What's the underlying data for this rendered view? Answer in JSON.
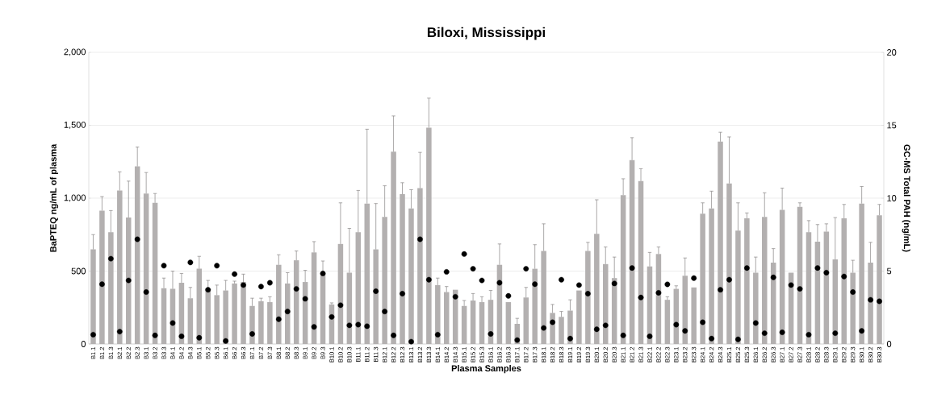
{
  "chart_data": {
    "type": "bar",
    "title": "Biloxi, Mississippi",
    "xlabel": "Plasma Samples",
    "ylabel": "BaPTEQ ng/mL of plasma",
    "y2label": "GC-MS Total PAH (ng/mL)",
    "categories": [
      "B1.1",
      "B1.2",
      "B1.3",
      "B2.1",
      "B2.2",
      "B2.3",
      "B3.1",
      "B3.2",
      "B3.3",
      "B4.1",
      "B4.2",
      "B4.3",
      "B5.1",
      "B5.2",
      "B5.3",
      "B6.1",
      "B6.2",
      "B6.3",
      "B7.1",
      "B7.2",
      "B7.3",
      "B8.1",
      "B8.2",
      "B8.3",
      "B9.1",
      "B9.2",
      "B9.3",
      "B10.1",
      "B10.2",
      "B10.3",
      "B11.1",
      "B11.2",
      "B11.3",
      "B12.1",
      "B12.2",
      "B12.3",
      "B13.1",
      "B13.2",
      "B13.3",
      "B14.1",
      "B14.2",
      "B14.3",
      "B15.1",
      "B15.2",
      "B15.3",
      "B16.1",
      "B16.2",
      "B16.3",
      "B17.1",
      "B17.2",
      "B17.3",
      "B18.1",
      "B18.2",
      "B18.3",
      "B19.1",
      "B19.2",
      "B19.3",
      "B20.1",
      "B20.2",
      "B20.3",
      "B21.1",
      "B21.2",
      "B21.3",
      "B22.1",
      "B22.2",
      "B22.3",
      "B23.1",
      "B23.2",
      "B23.3",
      "B24.1",
      "B24.2",
      "B24.3",
      "B25.1",
      "B25.2",
      "B25.3",
      "B26.1",
      "B26.2",
      "B26.3",
      "B27.1",
      "B27.2",
      "B27.3",
      "B28.1",
      "B28.2",
      "B28.3",
      "B29.1",
      "B29.2",
      "B29.3",
      "B30.1",
      "B30.2",
      "B30.3"
    ],
    "series": [
      {
        "type": "bar",
        "color": "#b3b0b0",
        "values": [
          649,
          915,
          766,
          1053,
          867,
          1218,
          1032,
          968,
          383,
          378,
          420,
          314,
          516,
          378,
          335,
          367,
          415,
          425,
          261,
          293,
          287,
          543,
          415,
          574,
          425,
          628,
          484,
          271,
          686,
          489,
          766,
          963,
          649,
          872,
          1319,
          1027,
          930,
          1069,
          1484,
          404,
          356,
          372,
          261,
          298,
          287,
          303,
          543,
          287,
          138,
          319,
          516,
          638,
          213,
          186,
          229,
          367,
          638,
          755,
          548,
          452,
          1021,
          1261,
          1117,
          532,
          617,
          303,
          378,
          468,
          388,
          894,
          930,
          1388,
          1101,
          777,
          862,
          489,
          872,
          558,
          920,
          489,
          941,
          766,
          702,
          771,
          580,
          862,
          489,
          963,
          558,
          883
        ],
        "errors": [
          [
            649,
            750
          ],
          [
            915,
            1011
          ],
          [
            766,
            915
          ],
          [
            1053,
            1181
          ],
          [
            867,
            1117
          ],
          [
            1218,
            1351
          ],
          [
            1032,
            1176
          ],
          [
            968,
            1032
          ],
          [
            383,
            452
          ],
          [
            378,
            500
          ],
          [
            420,
            484
          ],
          [
            314,
            388
          ],
          [
            516,
            601
          ],
          [
            378,
            436
          ],
          [
            335,
            404
          ],
          [
            367,
            436
          ],
          [
            415,
            431
          ],
          [
            425,
            479
          ],
          [
            261,
            314
          ],
          [
            293,
            314
          ],
          [
            287,
            324
          ],
          [
            543,
            612
          ],
          [
            415,
            489
          ],
          [
            574,
            638
          ],
          [
            425,
            505
          ],
          [
            628,
            702
          ],
          [
            484,
            569
          ],
          [
            271,
            282
          ],
          [
            686,
            968
          ],
          [
            489,
            793
          ],
          [
            766,
            1053
          ],
          [
            963,
            1473
          ],
          [
            649,
            963
          ],
          [
            872,
            1085
          ],
          [
            1319,
            1564
          ],
          [
            1027,
            1106
          ],
          [
            930,
            1058
          ],
          [
            1069,
            1314
          ],
          [
            1484,
            1686
          ],
          [
            404,
            452
          ],
          [
            356,
            394
          ],
          null,
          [
            261,
            298
          ],
          [
            298,
            346
          ],
          [
            287,
            324
          ],
          [
            303,
            367
          ],
          [
            543,
            686
          ],
          null,
          [
            138,
            176
          ],
          [
            319,
            388
          ],
          [
            516,
            681
          ],
          [
            638,
            824
          ],
          [
            213,
            271
          ],
          [
            186,
            223
          ],
          [
            229,
            303
          ],
          null,
          [
            638,
            697
          ],
          [
            755,
            989
          ],
          [
            548,
            665
          ],
          [
            452,
            596
          ],
          [
            1021,
            1133
          ],
          [
            1261,
            1415
          ],
          [
            1117,
            1202
          ],
          [
            532,
            628
          ],
          [
            617,
            665
          ],
          [
            303,
            324
          ],
          [
            378,
            399
          ],
          [
            468,
            590
          ],
          null,
          [
            894,
            968
          ],
          [
            930,
            1048
          ],
          [
            1388,
            1452
          ],
          [
            1101,
            1420
          ],
          [
            777,
            968
          ],
          [
            862,
            899
          ],
          [
            489,
            596
          ],
          [
            872,
            1037
          ],
          [
            558,
            654
          ],
          [
            920,
            1069
          ],
          null,
          [
            941,
            968
          ],
          [
            766,
            846
          ],
          [
            702,
            819
          ],
          [
            771,
            824
          ],
          [
            580,
            867
          ],
          [
            862,
            957
          ],
          [
            489,
            574
          ],
          [
            963,
            1080
          ],
          [
            558,
            697
          ],
          [
            883,
            957
          ]
        ]
      },
      {
        "type": "scatter",
        "axis": "y2",
        "color": "#000000",
        "marker": "circle",
        "values": [
          0.64,
          4.1,
          5.85,
          0.85,
          4.36,
          7.18,
          3.56,
          0.59,
          5.37,
          1.44,
          0.53,
          5.59,
          0.43,
          3.72,
          5.37,
          0.21,
          4.79,
          4.04,
          0.69,
          3.94,
          4.2,
          1.7,
          2.23,
          3.78,
          3.1,
          1.17,
          4.84,
          1.86,
          2.66,
          1.28,
          1.33,
          1.22,
          3.62,
          2.23,
          0.59,
          3.45,
          0.16,
          7.18,
          4.41,
          0.64,
          4.95,
          3.24,
          6.17,
          5.16,
          4.36,
          0.69,
          4.2,
          3.3,
          0.27,
          5.16,
          4.1,
          1.1,
          1.49,
          4.41,
          0.37,
          4.04,
          3.45,
          1.01,
          1.28,
          4.15,
          0.59,
          5.21,
          3.19,
          0.53,
          3.51,
          4.09,
          1.33,
          0.9,
          4.52,
          1.49,
          0.37,
          3.72,
          4.41,
          0.32,
          5.21,
          1.44,
          0.74,
          4.57,
          0.8,
          4.04,
          3.78,
          0.64,
          5.21,
          4.89,
          0.74,
          4.63,
          3.56,
          0.9,
          3.03,
          2.93
        ]
      }
    ],
    "ylim": [
      0,
      2000
    ],
    "yticks": [
      0,
      500,
      {
        "value": 1000,
        "label": "1,000"
      },
      {
        "value": 1500,
        "label": "1,500"
      },
      {
        "value": 2000,
        "label": "2,000"
      }
    ],
    "y2lim": [
      0,
      20
    ],
    "y2ticks": [
      0,
      5,
      10,
      15,
      20
    ],
    "grid": "y"
  }
}
